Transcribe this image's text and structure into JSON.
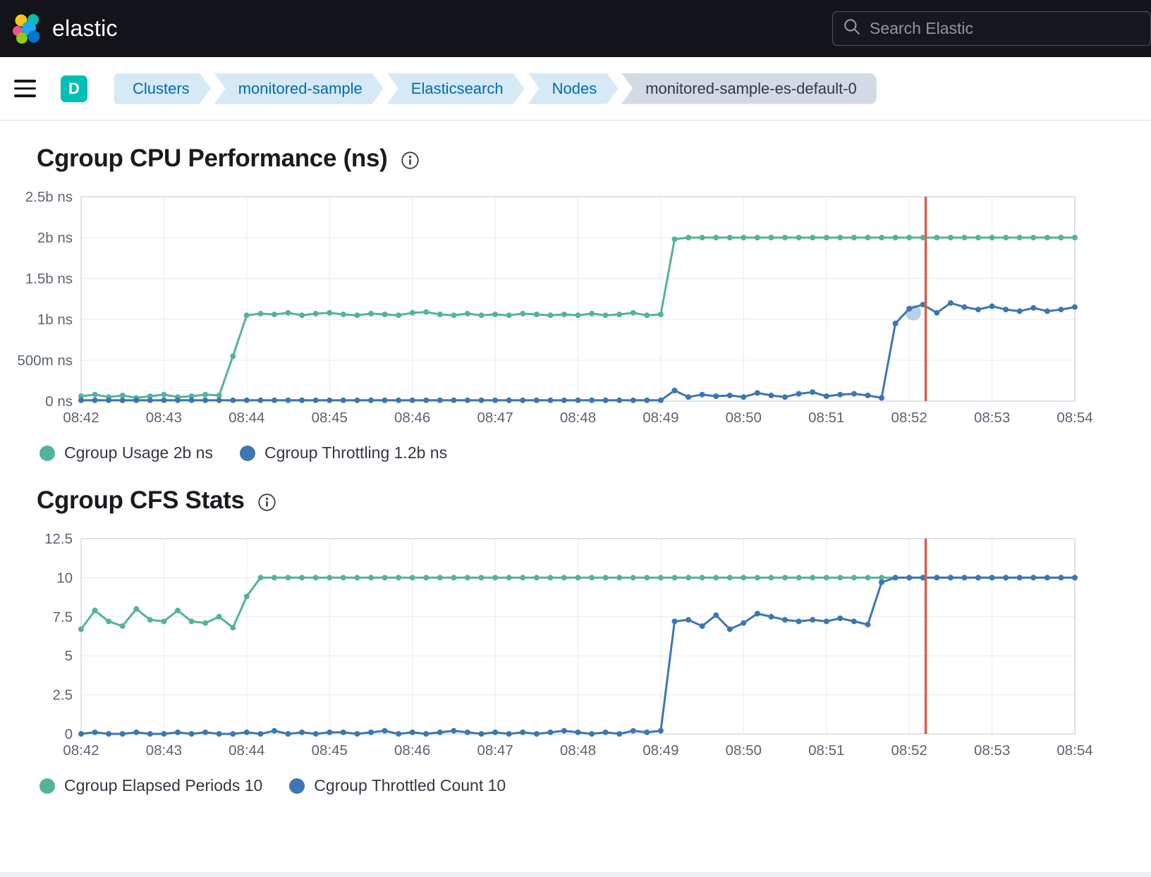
{
  "header": {
    "brand": "elastic",
    "search_placeholder": "Search Elastic"
  },
  "breadcrumb": {
    "badge": "D",
    "items": [
      {
        "label": "Clusters"
      },
      {
        "label": "monitored-sample"
      },
      {
        "label": "Elasticsearch"
      },
      {
        "label": "Nodes"
      },
      {
        "label": "monitored-sample-es-default-0"
      }
    ]
  },
  "colors": {
    "series_teal": "#54b399",
    "series_blue": "#3d76b3",
    "annotation_red": "#d4604f",
    "badge_teal": "#00bfb3"
  },
  "chart_data": [
    {
      "type": "line",
      "title": "Cgroup CPU Performance (ns)",
      "xlabel": "",
      "ylabel": "",
      "x_unit": "minutes since 08:42, one point per 10s",
      "xlim": [
        0,
        12
      ],
      "ylim": [
        0,
        2.5
      ],
      "x_start": 0,
      "x_step": 0.1666667,
      "grid": true,
      "legend_position": "bottom",
      "annotation_x": 10.2,
      "annotation_color": "#d4604f",
      "highlight_point": {
        "x": 10.05,
        "y": 1.08,
        "color": "#a9c9e8"
      },
      "yticks": [
        {
          "v": 0,
          "label": "0 ns"
        },
        {
          "v": 0.5,
          "label": "500m ns"
        },
        {
          "v": 1,
          "label": "1b ns"
        },
        {
          "v": 1.5,
          "label": "1.5b ns"
        },
        {
          "v": 2,
          "label": "2b ns"
        },
        {
          "v": 2.5,
          "label": "2.5b ns"
        }
      ],
      "xticks": [
        {
          "v": 0,
          "label": "08:42"
        },
        {
          "v": 1,
          "label": "08:43"
        },
        {
          "v": 2,
          "label": "08:44"
        },
        {
          "v": 3,
          "label": "08:45"
        },
        {
          "v": 4,
          "label": "08:46"
        },
        {
          "v": 5,
          "label": "08:47"
        },
        {
          "v": 6,
          "label": "08:48"
        },
        {
          "v": 7,
          "label": "08:49"
        },
        {
          "v": 8,
          "label": "08:50"
        },
        {
          "v": 9,
          "label": "08:51"
        },
        {
          "v": 10,
          "label": "08:52"
        },
        {
          "v": 11,
          "label": "08:53"
        },
        {
          "v": 12,
          "label": "08:54"
        }
      ],
      "series": [
        {
          "name": "Cgroup Usage",
          "legend": "Cgroup Usage 2b ns",
          "color": "#54b399",
          "values": [
            0.06,
            0.08,
            0.05,
            0.07,
            0.04,
            0.06,
            0.08,
            0.05,
            0.06,
            0.08,
            0.07,
            0.55,
            1.05,
            1.07,
            1.06,
            1.08,
            1.05,
            1.07,
            1.08,
            1.06,
            1.05,
            1.07,
            1.06,
            1.05,
            1.08,
            1.09,
            1.06,
            1.05,
            1.07,
            1.05,
            1.06,
            1.05,
            1.07,
            1.06,
            1.05,
            1.06,
            1.05,
            1.07,
            1.05,
            1.06,
            1.08,
            1.05,
            1.06,
            1.98,
            2,
            2,
            2,
            2,
            2,
            2,
            2,
            2,
            2,
            2,
            2,
            2,
            2,
            2,
            2,
            2,
            2,
            2,
            2,
            2,
            2,
            2,
            2,
            2,
            2,
            2,
            2,
            2,
            2
          ]
        },
        {
          "name": "Cgroup Throttling",
          "legend": "Cgroup Throttling 1.2b ns",
          "color": "#3d76b3",
          "values": [
            0.01,
            0.01,
            0.01,
            0.01,
            0.01,
            0.01,
            0.01,
            0.01,
            0.01,
            0.01,
            0.01,
            0.01,
            0.01,
            0.01,
            0.01,
            0.01,
            0.01,
            0.01,
            0.01,
            0.01,
            0.01,
            0.01,
            0.01,
            0.01,
            0.01,
            0.01,
            0.01,
            0.01,
            0.01,
            0.01,
            0.01,
            0.01,
            0.01,
            0.01,
            0.01,
            0.01,
            0.01,
            0.01,
            0.01,
            0.01,
            0.01,
            0.01,
            0.01,
            0.13,
            0.05,
            0.08,
            0.06,
            0.07,
            0.05,
            0.1,
            0.07,
            0.05,
            0.09,
            0.11,
            0.06,
            0.08,
            0.09,
            0.07,
            0.04,
            0.95,
            1.13,
            1.18,
            1.08,
            1.2,
            1.15,
            1.12,
            1.16,
            1.12,
            1.1,
            1.14,
            1.1,
            1.12,
            1.15
          ]
        }
      ]
    },
    {
      "type": "line",
      "title": "Cgroup CFS Stats",
      "xlabel": "",
      "ylabel": "",
      "x_unit": "minutes since 08:42, one point per 10s",
      "xlim": [
        0,
        12
      ],
      "ylim": [
        0,
        12.5
      ],
      "x_start": 0,
      "x_step": 0.1666667,
      "grid": true,
      "legend_position": "bottom",
      "annotation_x": 10.2,
      "annotation_color": "#d4604f",
      "yticks": [
        {
          "v": 0,
          "label": "0"
        },
        {
          "v": 2.5,
          "label": "2.5"
        },
        {
          "v": 5,
          "label": "5"
        },
        {
          "v": 7.5,
          "label": "7.5"
        },
        {
          "v": 10,
          "label": "10"
        },
        {
          "v": 12.5,
          "label": "12.5"
        }
      ],
      "xticks": [
        {
          "v": 0,
          "label": "08:42"
        },
        {
          "v": 1,
          "label": "08:43"
        },
        {
          "v": 2,
          "label": "08:44"
        },
        {
          "v": 3,
          "label": "08:45"
        },
        {
          "v": 4,
          "label": "08:46"
        },
        {
          "v": 5,
          "label": "08:47"
        },
        {
          "v": 6,
          "label": "08:48"
        },
        {
          "v": 7,
          "label": "08:49"
        },
        {
          "v": 8,
          "label": "08:50"
        },
        {
          "v": 9,
          "label": "08:51"
        },
        {
          "v": 10,
          "label": "08:52"
        },
        {
          "v": 11,
          "label": "08:53"
        },
        {
          "v": 12,
          "label": "08:54"
        }
      ],
      "series": [
        {
          "name": "Cgroup Elapsed Periods",
          "legend": "Cgroup Elapsed Periods 10",
          "color": "#54b399",
          "values": [
            6.7,
            7.9,
            7.2,
            6.9,
            8,
            7.3,
            7.2,
            7.9,
            7.2,
            7.1,
            7.5,
            6.8,
            8.8,
            10,
            10,
            10,
            10,
            10,
            10,
            10,
            10,
            10,
            10,
            10,
            10,
            10,
            10,
            10,
            10,
            10,
            10,
            10,
            10,
            10,
            10,
            10,
            10,
            10,
            10,
            10,
            10,
            10,
            10,
            10,
            10,
            10,
            10,
            10,
            10,
            10,
            10,
            10,
            10,
            10,
            10,
            10,
            10,
            10,
            10,
            10,
            10,
            10,
            10,
            10,
            10,
            10,
            10,
            10,
            10,
            10,
            10,
            10,
            10
          ]
        },
        {
          "name": "Cgroup Throttled Count",
          "legend": "Cgroup Throttled Count 10",
          "color": "#3d76b3",
          "values": [
            0,
            0.1,
            0,
            0,
            0.1,
            0,
            0,
            0.1,
            0,
            0.1,
            0,
            0,
            0.1,
            0,
            0.2,
            0,
            0.1,
            0,
            0.1,
            0.1,
            0,
            0.1,
            0.2,
            0,
            0.1,
            0,
            0.1,
            0.2,
            0.1,
            0,
            0.1,
            0,
            0.1,
            0,
            0.1,
            0.2,
            0.1,
            0,
            0.1,
            0,
            0.2,
            0.1,
            0.2,
            7.2,
            7.3,
            6.9,
            7.6,
            6.7,
            7.1,
            7.7,
            7.5,
            7.3,
            7.2,
            7.3,
            7.2,
            7.4,
            7.2,
            7.0,
            9.7,
            10,
            10,
            10,
            10,
            10,
            10,
            10,
            10,
            10,
            10,
            10,
            10,
            10,
            10
          ]
        }
      ]
    }
  ]
}
